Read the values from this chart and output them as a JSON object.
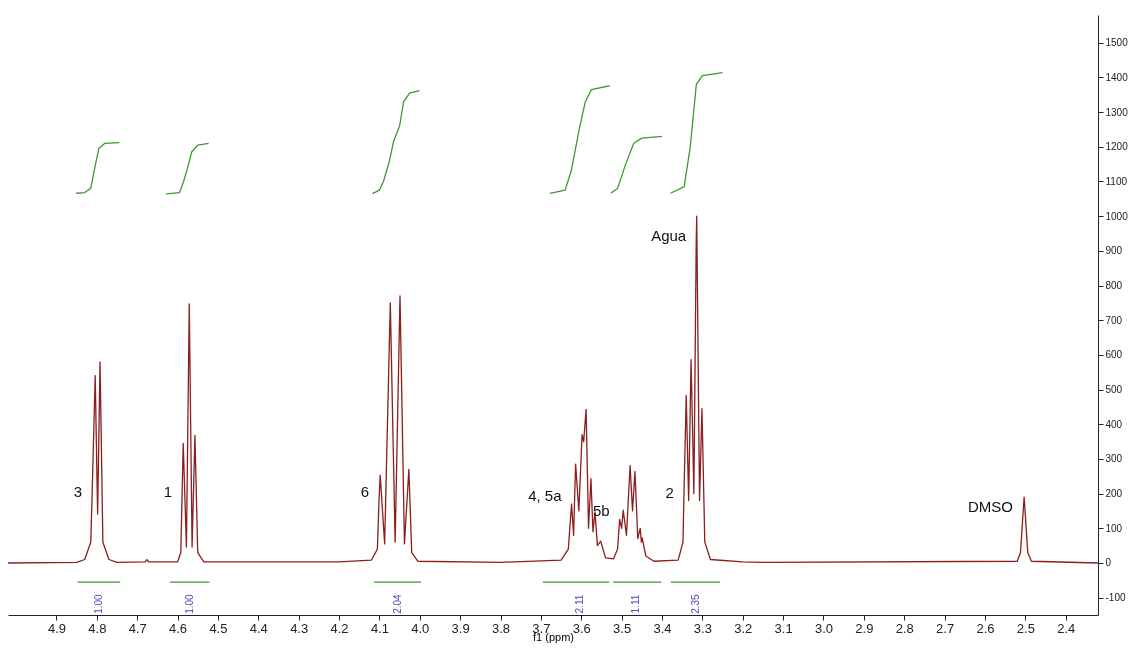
{
  "chart_data": {
    "type": "line",
    "xlabel": "f1 (ppm)",
    "xlim": [
      5.02,
      2.32
    ],
    "ylim": [
      -150,
      1580
    ],
    "xticks": [
      4.9,
      4.8,
      4.7,
      4.6,
      4.5,
      4.4,
      4.3,
      4.2,
      4.1,
      {
        "value": 4,
        "label": "4.0"
      },
      3.9,
      3.8,
      3.7,
      3.6,
      3.5,
      3.4,
      3.3,
      3.2,
      3.1,
      {
        "value": 3,
        "label": "3.0"
      },
      2.9,
      2.8,
      2.7,
      2.6,
      2.5,
      2.4
    ],
    "yticks": [
      -100,
      0,
      100,
      200,
      300,
      400,
      500,
      600,
      700,
      800,
      900,
      1000,
      1100,
      1200,
      1300,
      1400,
      1500
    ],
    "series": [
      {
        "color": "#8b1e1e",
        "x": [
          5.02,
          4.85,
          4.83,
          4.815,
          4.812,
          4.804,
          4.798,
          4.792,
          4.785,
          4.77,
          4.75,
          4.68,
          4.676,
          4.672,
          4.6,
          4.592,
          4.589,
          4.586,
          4.578,
          4.571,
          4.564,
          4.557,
          4.55,
          4.535,
          4.2,
          4.12,
          4.105,
          4.101,
          4.098,
          4.087,
          4.073,
          4.061,
          4.049,
          4.038,
          4.027,
          4.02,
          4.005,
          3.8,
          3.65,
          3.632,
          3.624,
          3.619,
          3.614,
          3.606,
          3.598,
          3.594,
          3.588,
          3.582,
          3.576,
          3.571,
          3.566,
          3.56,
          3.552,
          3.54,
          3.52,
          3.51,
          3.505,
          3.5,
          3.496,
          3.488,
          3.479,
          3.473,
          3.467,
          3.46,
          3.454,
          3.451,
          3.449,
          3.44,
          3.42,
          3.36,
          3.348,
          3.346,
          3.34,
          3.334,
          3.328,
          3.321,
          3.3153,
          3.314,
          3.307,
          3.301,
          3.294,
          3.28,
          3.2,
          3.15,
          2.52,
          2.512,
          2.506,
          2.503,
          2.5,
          2.494,
          2.485,
          2.32
        ],
        "values": [
          0,
          2,
          10,
          60,
          181,
          540,
          141,
          580,
          60,
          10,
          2,
          3,
          10,
          3,
          3,
          30,
          181,
          345,
          46,
          747,
          46,
          368,
          30,
          3,
          3,
          8,
          40,
          181,
          253,
          55,
          750,
          60,
          770,
          55,
          270,
          30,
          5,
          2,
          8,
          40,
          170,
          80,
          285,
          150,
          370,
          350,
          443,
          100,
          243,
          90,
          147,
          50,
          63,
          15,
          12,
          40,
          126,
          100,
          152,
          80,
          281,
          150,
          264,
          70,
          100,
          60,
          72,
          20,
          5,
          8,
          60,
          178,
          483,
          180,
          586,
          200,
          920,
          1000,
          180,
          445,
          60,
          10,
          3,
          2,
          5,
          30,
          138,
          190,
          138,
          30,
          5,
          0
        ]
      },
      {
        "color": "#3c9a2e",
        "x": [
          4.851,
          4.83,
          4.815,
          4.805,
          4.795,
          4.78,
          4.744
        ],
        "values": [
          1066,
          1068,
          1080,
          1140,
          1195,
          1210,
          1212
        ]
      },
      {
        "color": "#3c9a2e",
        "x": [
          4.628,
          4.595,
          4.585,
          4.575,
          4.565,
          4.55,
          4.523
        ],
        "values": [
          1064,
          1068,
          1100,
          1140,
          1185,
          1205,
          1210
        ]
      },
      {
        "color": "#3c9a2e",
        "x": [
          4.117,
          4.1,
          4.09,
          4.075,
          4.065,
          4.05,
          4.04,
          4.025,
          4.001
        ],
        "values": [
          1065,
          1075,
          1100,
          1160,
          1215,
          1260,
          1330,
          1355,
          1362
        ]
      },
      {
        "color": "#3c9a2e",
        "x": [
          3.678,
          3.64,
          3.625,
          3.605,
          3.59,
          3.575,
          3.53
        ],
        "values": [
          1066,
          1075,
          1130,
          1250,
          1330,
          1365,
          1376
        ]
      },
      {
        "color": "#3c9a2e",
        "x": [
          3.527,
          3.51,
          3.49,
          3.47,
          3.45,
          3.4
        ],
        "values": [
          1066,
          1080,
          1150,
          1210,
          1225,
          1230
        ]
      },
      {
        "color": "#3c9a2e",
        "x": [
          3.379,
          3.345,
          3.33,
          3.315,
          3.3,
          3.25
        ],
        "values": [
          1066,
          1085,
          1200,
          1380,
          1405,
          1414
        ]
      },
      {
        "color": "#3c9a2e",
        "x": [
          4.848,
          4.794,
          4.742
        ],
        "values": [
          -55,
          -55,
          -55
        ]
      },
      {
        "color": "#3c9a2e",
        "x": [
          4.619,
          4.569,
          4.521
        ],
        "values": [
          -55,
          -55,
          -55
        ]
      },
      {
        "color": "#3c9a2e",
        "x": [
          4.113,
          4.053,
          3.997
        ],
        "values": [
          -55,
          -55,
          -55
        ]
      },
      {
        "color": "#3c9a2e",
        "x": [
          3.695,
          3.603,
          3.531
        ],
        "values": [
          -55,
          -55,
          -55
        ]
      },
      {
        "color": "#3c9a2e",
        "x": [
          3.521,
          3.465,
          3.402
        ],
        "values": [
          -55,
          -55,
          -55
        ]
      },
      {
        "color": "#3c9a2e",
        "x": [
          3.378,
          3.317,
          3.256
        ],
        "values": [
          -55,
          -55,
          -55
        ]
      }
    ],
    "annotations": [
      {
        "text": "3",
        "x": 4.812,
        "y": 181
      },
      {
        "text": "1",
        "x": 4.589,
        "y": 181
      },
      {
        "text": "6",
        "x": 4.101,
        "y": 181
      },
      {
        "text": "4, 5a",
        "x": 3.624,
        "y": 170
      },
      {
        "text": "5b",
        "x": 3.505,
        "y": 126
      },
      {
        "text": "2",
        "x": 3.346,
        "y": 178
      },
      {
        "text": "Agua",
        "x": 3.3153,
        "y": 920
      },
      {
        "text": "DMSO",
        "x": 2.506,
        "y": 138
      },
      {
        "text": "1.00",
        "x": 4.794,
        "y": -55
      },
      {
        "text": "1.00",
        "x": 4.569,
        "y": -55
      },
      {
        "text": "2.04",
        "x": 4.053,
        "y": -55
      },
      {
        "text": "2.11",
        "x": 3.603,
        "y": -55
      },
      {
        "text": "1.11",
        "x": 3.465,
        "y": -55
      },
      {
        "text": "2.35",
        "x": 3.317,
        "y": -55
      }
    ]
  }
}
